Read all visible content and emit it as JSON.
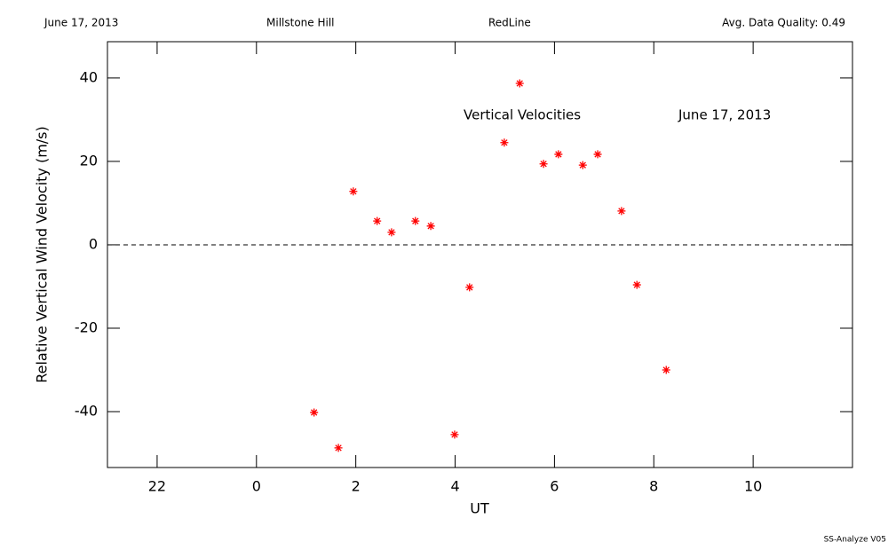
{
  "chart_data": {
    "type": "scatter",
    "header": [
      "June 17, 2013",
      "Millstone Hill",
      "RedLine",
      "Avg. Data Quality: 0.49"
    ],
    "annotations": [
      "Vertical Velocities",
      "June 17, 2013"
    ],
    "footer": "SS-Analyze V05",
    "xlabel": "UT",
    "ylabel": "Relative Vertical Wind Velocity (m/s)",
    "xlim": [
      -3,
      12
    ],
    "ylim": [
      -53.4,
      48.7
    ],
    "xticks": [
      {
        "value": -2,
        "label": "22"
      },
      0,
      2,
      4,
      6,
      8,
      10
    ],
    "yticks": [
      -40,
      -20,
      0,
      20,
      40
    ],
    "reference_line": 0,
    "series": [
      {
        "name": "Vertical Velocities",
        "color": "#ff0000",
        "x": [
          1.16,
          1.65,
          1.95,
          2.43,
          2.72,
          3.2,
          3.51,
          3.99,
          4.29,
          4.99,
          5.3,
          5.78,
          6.08,
          6.57,
          6.87,
          7.35,
          7.66,
          8.25
        ],
        "values": [
          -40.2,
          -48.7,
          12.8,
          5.7,
          3.0,
          5.7,
          4.5,
          -45.5,
          -10.2,
          24.5,
          38.7,
          19.4,
          21.7,
          19.1,
          21.7,
          8.1,
          -9.6,
          -30.0
        ]
      }
    ]
  }
}
